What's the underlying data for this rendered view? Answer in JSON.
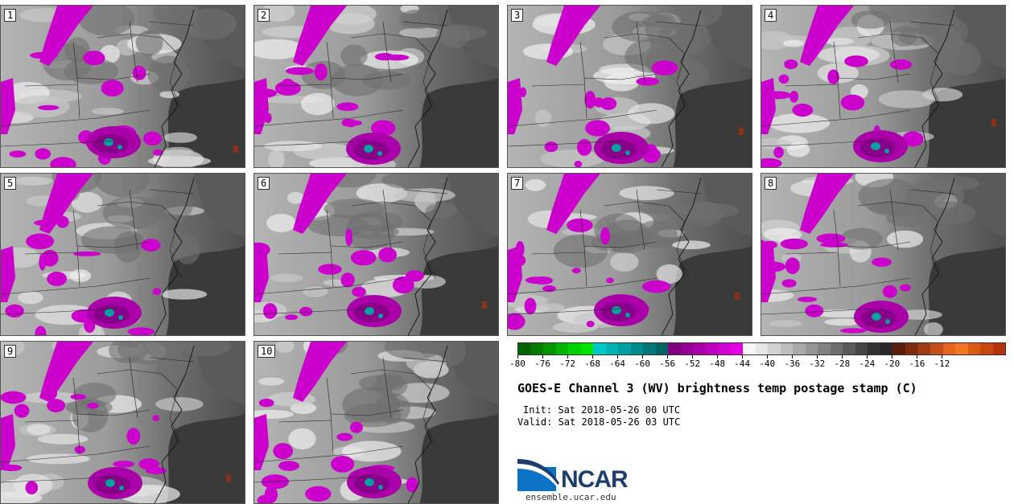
{
  "panels": [
    {
      "label": "1"
    },
    {
      "label": "2"
    },
    {
      "label": "3"
    },
    {
      "label": "4"
    },
    {
      "label": "5"
    },
    {
      "label": "6"
    },
    {
      "label": "7"
    },
    {
      "label": "8"
    },
    {
      "label": "9"
    },
    {
      "label": "10"
    }
  ],
  "colorbar": {
    "ticks": [
      "-80",
      "-76",
      "-72",
      "-68",
      "-64",
      "-60",
      "-56",
      "-52",
      "-48",
      "-44",
      "-40",
      "-36",
      "-32",
      "-28",
      "-24",
      "-20",
      "-16",
      "-12"
    ],
    "colors": [
      "#006400",
      "#007d00",
      "#009600",
      "#00b400",
      "#00d200",
      "#00e600",
      "#00c8c8",
      "#00b4b4",
      "#00a0a0",
      "#008c8c",
      "#007878",
      "#006464",
      "#800080",
      "#960096",
      "#aa00aa",
      "#be00be",
      "#d200d2",
      "#e600e6",
      "#f5f5f5",
      "#e6e6e6",
      "#d2d2d2",
      "#bebebe",
      "#aaaaaa",
      "#969696",
      "#828282",
      "#6e6e6e",
      "#5a5a5a",
      "#464646",
      "#323232",
      "#282828",
      "#5a1e0a",
      "#7d2d0f",
      "#a03c14",
      "#c35019",
      "#e6641e",
      "#f07820",
      "#dc5a14",
      "#c84610",
      "#b4320c"
    ]
  },
  "title": "GOES-E Channel 3 (WV) brightness temp postage stamp (C)",
  "init": "Init: Sat 2018-05-26 00 UTC",
  "valid": "Valid: Sat 2018-05-26 03 UTC",
  "logo": {
    "name": "NCAR",
    "url": "ensemble.ucar.edu"
  }
}
